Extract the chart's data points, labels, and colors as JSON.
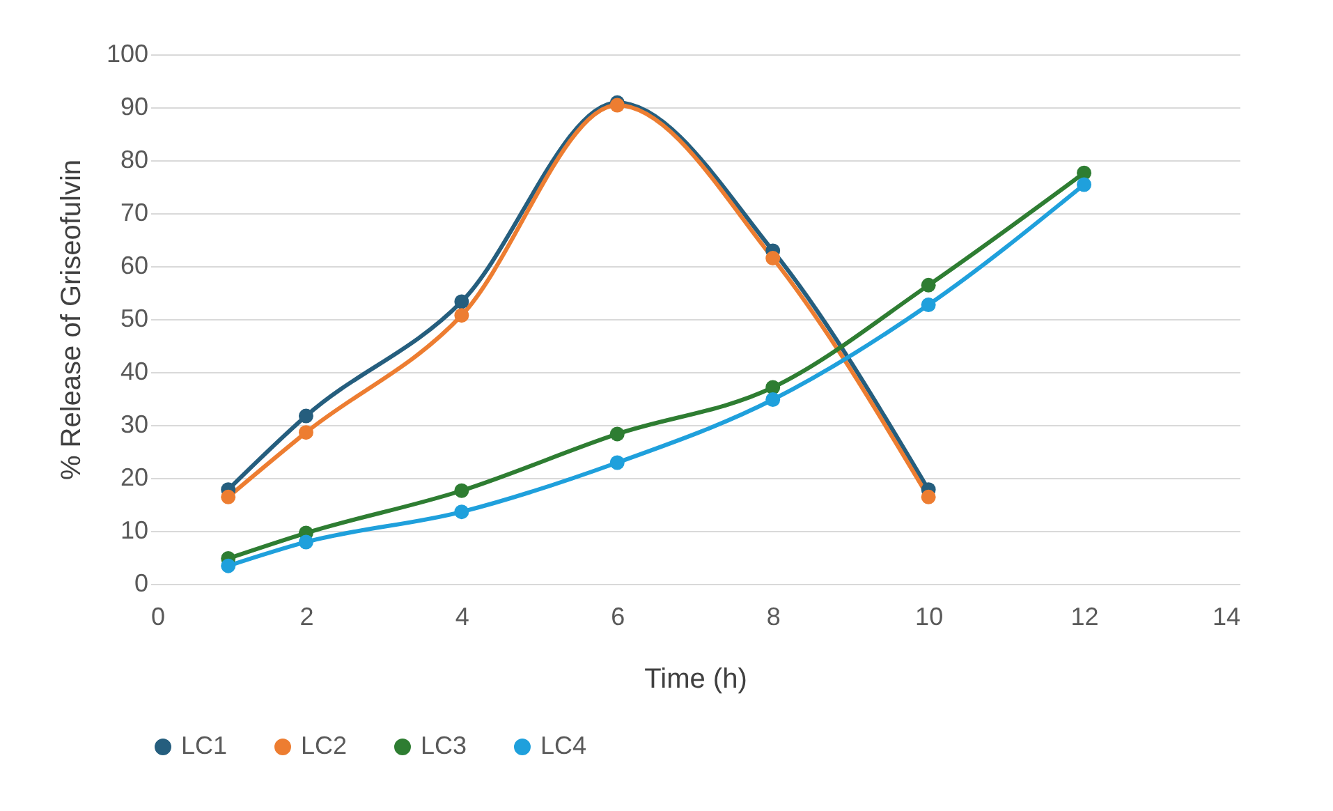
{
  "chart_data": {
    "type": "line",
    "xlabel": "Time (h)",
    "ylabel": "% Release of Griseofulvin",
    "xlim": [
      0,
      14
    ],
    "xticks": [
      0,
      2,
      4,
      6,
      8,
      10,
      12,
      14
    ],
    "ylim": [
      0,
      100
    ],
    "yticks": [
      0,
      10,
      20,
      30,
      40,
      50,
      60,
      70,
      80,
      90,
      100
    ],
    "grid": "y",
    "legend": "bottom",
    "marker": "circle",
    "line_style": "solid",
    "series": [
      {
        "name": "LC1",
        "color": "#255e7e",
        "x": [
          1,
          2,
          4,
          6,
          8,
          10
        ],
        "values": [
          17.8,
          31.7,
          53.3,
          90.9,
          62.9,
          17.8
        ]
      },
      {
        "name": "LC2",
        "color": "#ed7d31",
        "x": [
          1,
          2,
          4,
          6,
          8,
          10
        ],
        "values": [
          16.4,
          28.6,
          50.7,
          90.4,
          61.5,
          16.4
        ]
      },
      {
        "name": "LC3",
        "color": "#2e7d32",
        "x": [
          1,
          2,
          4,
          6,
          8,
          10,
          12
        ],
        "values": [
          4.8,
          9.6,
          17.6,
          28.3,
          37.1,
          56.4,
          77.6
        ]
      },
      {
        "name": "LC4",
        "color": "#1fa0dc",
        "x": [
          1,
          2,
          4,
          6,
          8,
          10,
          12
        ],
        "values": [
          3.4,
          7.9,
          13.6,
          22.9,
          34.8,
          52.7,
          75.4
        ]
      }
    ]
  }
}
